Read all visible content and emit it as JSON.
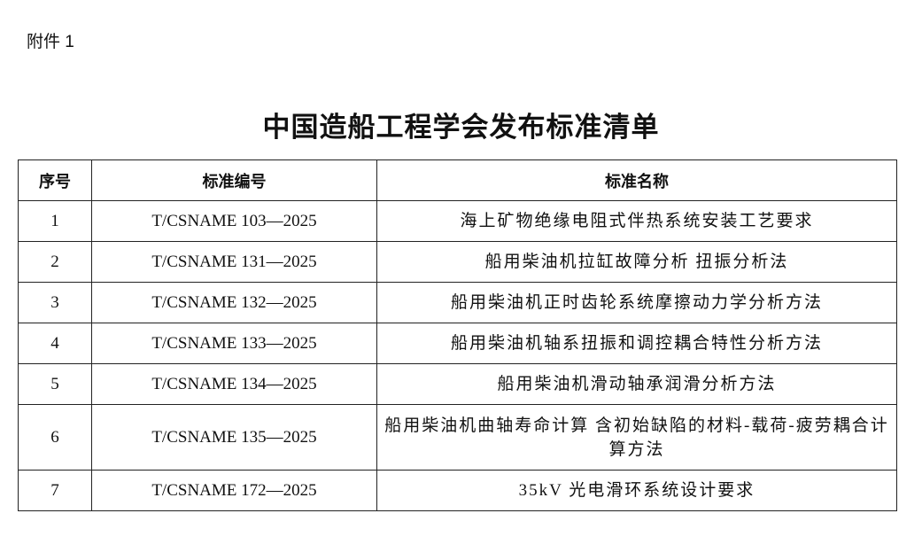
{
  "attachment_label": "附件 1",
  "title": "中国造船工程学会发布标准清单",
  "table": {
    "headers": [
      "序号",
      "标准编号",
      "标准名称"
    ],
    "rows": [
      [
        "1",
        "T/CSNAME 103—2025",
        "海上矿物绝缘电阻式伴热系统安装工艺要求"
      ],
      [
        "2",
        "T/CSNAME 131—2025",
        "船用柴油机拉缸故障分析 扭振分析法"
      ],
      [
        "3",
        "T/CSNAME 132—2025",
        "船用柴油机正时齿轮系统摩擦动力学分析方法"
      ],
      [
        "4",
        "T/CSNAME 133—2025",
        "船用柴油机轴系扭振和调控耦合特性分析方法"
      ],
      [
        "5",
        "T/CSNAME 134—2025",
        "船用柴油机滑动轴承润滑分析方法"
      ],
      [
        "6",
        "T/CSNAME 135—2025",
        "船用柴油机曲轴寿命计算 含初始缺陷的材料-载荷-疲劳耦合计算方法"
      ],
      [
        "7",
        "T/CSNAME 172—2025",
        "35kV 光电滑环系统设计要求"
      ]
    ]
  }
}
